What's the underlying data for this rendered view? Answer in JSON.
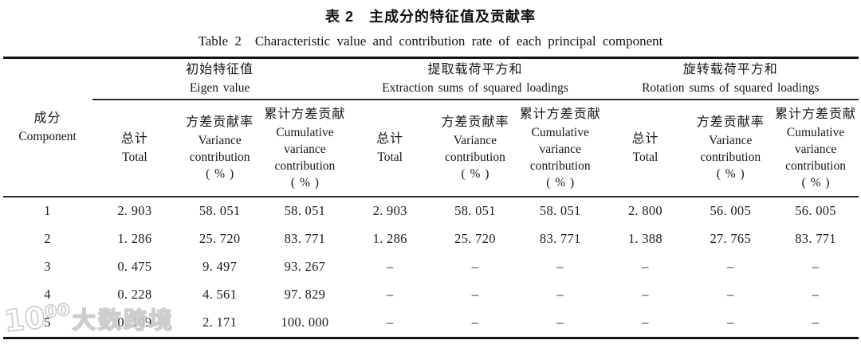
{
  "page": {
    "title_zh": "表 2　主成分的特征值及贡献率",
    "title_en": "Table 2 Characteristic value and contribution rate of each principal component"
  },
  "table": {
    "component_header": {
      "zh": "成分",
      "en": "Component"
    },
    "groups": [
      {
        "zh": "初始特征值",
        "en": "Eigen value"
      },
      {
        "zh": "提取载荷平方和",
        "en": "Extraction sums of squared loadings"
      },
      {
        "zh": "旋转载荷平方和",
        "en": "Rotation sums of squared loadings"
      }
    ],
    "subcolumns": [
      {
        "zh": "总计",
        "en": "Total"
      },
      {
        "zh": "方差贡献率",
        "en": "Variance\ncontribution\n( % )"
      },
      {
        "zh": "累计方差贡献",
        "en": "Cumulative\nvariance\ncontribution\n( % )"
      }
    ],
    "rows": [
      {
        "component": "1",
        "values": [
          "2. 903",
          "58. 051",
          "58. 051",
          "2. 903",
          "58. 051",
          "58. 051",
          "2. 800",
          "56. 005",
          "56. 005"
        ]
      },
      {
        "component": "2",
        "values": [
          "1. 286",
          "25. 720",
          "83. 771",
          "1. 286",
          "25. 720",
          "83. 771",
          "1. 388",
          "27. 765",
          "83. 771"
        ]
      },
      {
        "component": "3",
        "values": [
          "0. 475",
          "9. 497",
          "93. 267",
          "–",
          "–",
          "–",
          "–",
          "–",
          "–"
        ]
      },
      {
        "component": "4",
        "values": [
          "0. 228",
          "4. 561",
          "97. 829",
          "–",
          "–",
          "–",
          "–",
          "–",
          "–"
        ]
      },
      {
        "component": "5",
        "values": [
          "0. 109",
          "2. 171",
          "100. 000",
          "–",
          "–",
          "–",
          "–",
          "–",
          "–"
        ]
      }
    ]
  },
  "watermark": {
    "logo": "10⁰⁰",
    "text": "大数跨境"
  },
  "colors": {
    "rule": "#141414",
    "text": "#1b1b1b",
    "watermark_stroke": "#c9c9c9"
  }
}
